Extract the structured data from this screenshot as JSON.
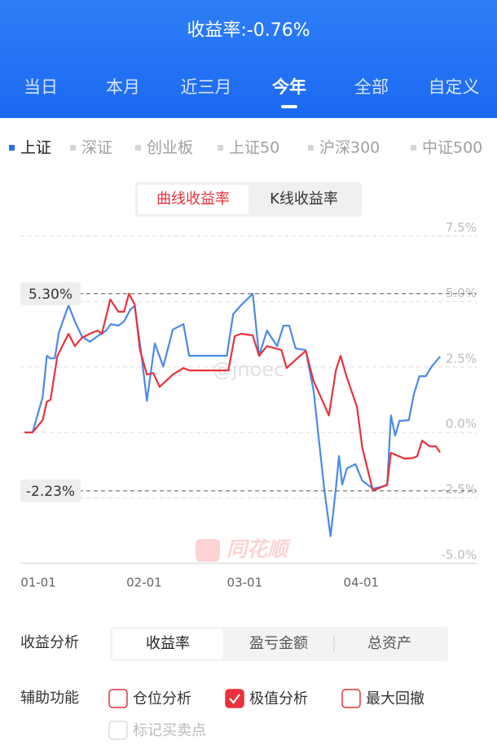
{
  "header": {
    "title": "收益率:-0.76%",
    "tabs": [
      "当日",
      "本月",
      "近三月",
      "今年",
      "全部",
      "自定义"
    ],
    "active_tab": 3
  },
  "index_tabs": {
    "items": [
      "上证",
      "深证",
      "创业板",
      "上证50",
      "沪深300",
      "中证500"
    ],
    "active": 0
  },
  "chart_tabs": {
    "items": [
      "曲线收益率",
      "K线收益率"
    ],
    "active": 0
  },
  "chart_data": {
    "type": "line",
    "watermark": "@jnoec",
    "logo_text": "同花顺",
    "xlim": [
      -0.8,
      85.4
    ],
    "xticks": [
      {
        "value": 0,
        "label": "01-01"
      },
      {
        "value": 20,
        "label": "02-01"
      },
      {
        "value": 39,
        "label": "03-01"
      },
      {
        "value": 61,
        "label": "04-01"
      }
    ],
    "ylim": [
      -5,
      7.5
    ],
    "yticks": [
      {
        "value": 7.5,
        "label": "7.5%"
      },
      {
        "value": 5,
        "label": "5.0%"
      },
      {
        "value": 2.5,
        "label": "2.5%"
      },
      {
        "value": 0,
        "label": "0.0%"
      },
      {
        "value": -2.5,
        "label": "-2.5%"
      },
      {
        "value": -5,
        "label": "-5.0%"
      }
    ],
    "grid": true,
    "annotations": [
      {
        "value": 5.3,
        "label": "5.30%"
      },
      {
        "value": -2.23,
        "label": "-2.23%"
      }
    ],
    "series": [
      {
        "color": "#4a8ae8",
        "x": [
          0,
          1.5,
          3.4,
          4.2,
          4.9,
          5.7,
          6.5,
          8.3,
          9.5,
          10.8,
          12.3,
          13.8,
          15.4,
          16.3,
          17.7,
          18.8,
          20,
          20.8,
          22,
          23.1,
          24.6,
          26.2,
          28,
          30,
          31.1,
          34.6,
          38.2,
          39.4,
          40.9,
          43.1,
          44.3,
          45.8,
          47.7,
          48.9,
          50,
          51.2,
          53.1,
          54.6,
          56.6,
          57.8,
          58.8,
          59.4,
          60,
          60.9,
          62.5,
          63.8,
          65.8,
          68.5,
          69.2,
          70,
          70.8,
          72.6,
          73.5,
          74.6,
          75.8,
          76.9,
          78.5
        ],
        "values": [
          0,
          0,
          1.34,
          2.93,
          2.83,
          2.83,
          3.83,
          4.86,
          4.24,
          3.68,
          3.46,
          3.68,
          3.89,
          4.14,
          4.08,
          4.24,
          4.7,
          4.83,
          3.08,
          1.21,
          3.4,
          2.52,
          3.93,
          4.14,
          2.93,
          2.93,
          2.93,
          4.52,
          4.86,
          5.3,
          2.93,
          3.89,
          3.3,
          4.08,
          4.08,
          3.21,
          3.15,
          1.59,
          -2.15,
          -3.96,
          -2.15,
          -0.9,
          -1.99,
          -1.37,
          -1.21,
          -1.84,
          -2.15,
          -2.02,
          0.65,
          -0.12,
          0.44,
          0.47,
          1.43,
          2.15,
          2.15,
          2.52,
          2.9
        ]
      },
      {
        "color": "#e8323c",
        "x": [
          0,
          1.5,
          3.4,
          4.2,
          4.9,
          6.2,
          8.3,
          9.5,
          10.8,
          12.3,
          13.8,
          14.6,
          16.2,
          17.7,
          18.8,
          19.7,
          20.8,
          21.8,
          23.1,
          24.3,
          25.5,
          28,
          30,
          31.1,
          34.6,
          38.5,
          39.7,
          40.9,
          43.1,
          44.3,
          45.8,
          48.5,
          49.5,
          51.5,
          53.1,
          54.6,
          56.6,
          57.5,
          58.8,
          59.7,
          60.8,
          62.8,
          63.8,
          65.8,
          68.5,
          69.2,
          71.8,
          73.5,
          74.2,
          75.1,
          76.5,
          77.7,
          78.5
        ],
        "values": [
          0,
          0,
          0.47,
          1.18,
          1.25,
          2.93,
          3.77,
          3.3,
          3.61,
          3.77,
          3.89,
          3.77,
          5.08,
          4.61,
          4.61,
          5.3,
          4.89,
          3.15,
          2.21,
          2.27,
          1.74,
          2.21,
          2.46,
          2.37,
          2.37,
          2.37,
          3.68,
          3.77,
          3.71,
          2.93,
          3.3,
          3.15,
          2.46,
          2.83,
          3.12,
          1.96,
          1.06,
          0.65,
          2.37,
          2.93,
          2.15,
          0.97,
          -0.59,
          -2.23,
          -1.99,
          -0.78,
          -1,
          -0.97,
          -0.9,
          -0.31,
          -0.53,
          -0.53,
          -0.76
        ]
      }
    ]
  },
  "analysis": {
    "label": "收益分析",
    "tabs": [
      "收益率",
      "盈亏金额",
      "总资产"
    ],
    "active": 0
  },
  "aux": {
    "label": "辅助功能",
    "options": [
      {
        "label": "仓位分析",
        "checked": false,
        "enabled": true
      },
      {
        "label": "极值分析",
        "checked": true,
        "enabled": true
      },
      {
        "label": "最大回撤",
        "checked": false,
        "enabled": true
      },
      {
        "label": "标记买卖点",
        "checked": false,
        "enabled": false
      }
    ]
  }
}
